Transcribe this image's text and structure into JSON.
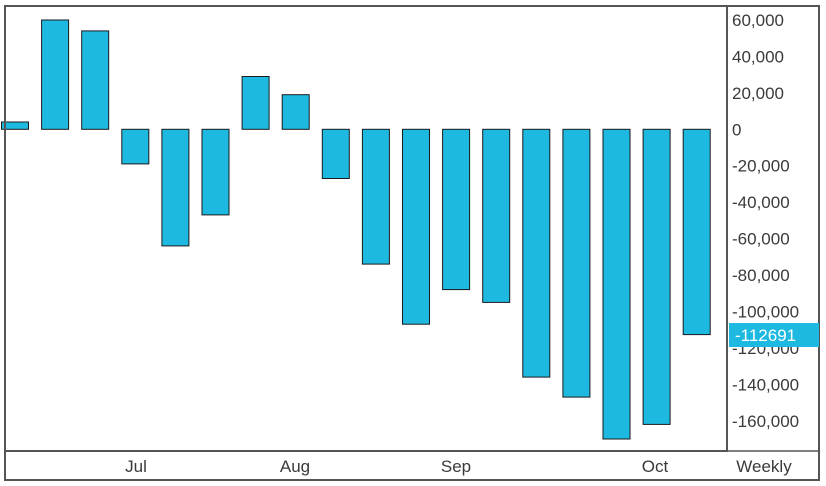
{
  "chart_data": {
    "type": "bar",
    "frequency_label": "Weekly",
    "x_labels": [
      "Jul",
      "Aug",
      "Sep",
      "Oct"
    ],
    "ylim": [
      -170000,
      60000
    ],
    "yticks": [
      "60,000",
      "40,000",
      "20,000",
      "0",
      "-20,000",
      "-40,000",
      "-60,000",
      "-80,000",
      "-100,000",
      "-120,000",
      "-140,000",
      "-160,000"
    ],
    "values": [
      4000,
      60000,
      54000,
      -19000,
      -64000,
      -47000,
      29000,
      19000,
      -27000,
      -74000,
      -107000,
      -88000,
      -95000,
      -136000,
      -147000,
      -170000,
      -162000,
      -112691
    ],
    "last_value_label": "-112691",
    "colors": {
      "bar": "#1eb9e1",
      "bar_outline": "#1a1a1a",
      "tag": "#1eb9e1",
      "frame": "#555555"
    }
  }
}
